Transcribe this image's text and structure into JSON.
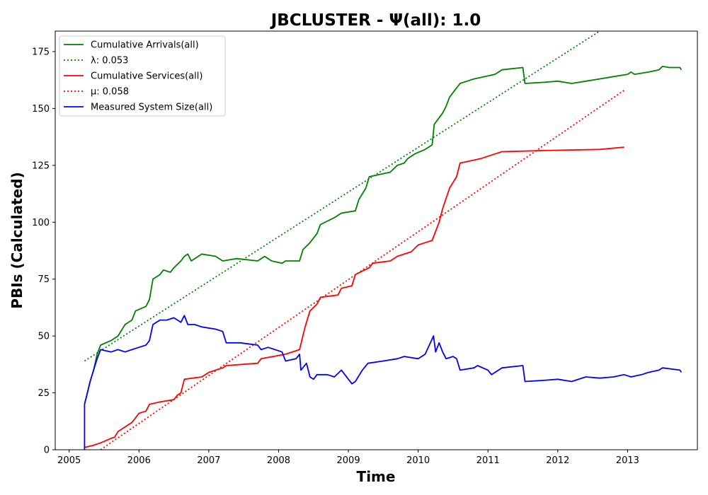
{
  "chart_data": {
    "type": "line",
    "title": "JBCLUSTER -  Ψ(all): 1.0",
    "xlabel": "Time",
    "ylabel": "PBIs (Calculated)",
    "xlim": [
      2004.8,
      2014.0
    ],
    "ylim": [
      0,
      184
    ],
    "x_ticks": [
      2005,
      2006,
      2007,
      2008,
      2009,
      2010,
      2011,
      2012,
      2013
    ],
    "x_tick_labels": [
      "2005",
      "2006",
      "2007",
      "2008",
      "2009",
      "2010",
      "2011",
      "2012",
      "2013"
    ],
    "y_ticks": [
      0,
      25,
      50,
      75,
      100,
      125,
      150,
      175
    ],
    "y_tick_labels": [
      "0",
      "25",
      "50",
      "75",
      "100",
      "125",
      "150",
      "175"
    ],
    "grid": false,
    "legend_position": "top-left",
    "series": [
      {
        "name": "Cumulative Arrivals(all)",
        "color": "#008000",
        "style": "solid",
        "points": [
          [
            2005.22,
            20
          ],
          [
            2005.26,
            25
          ],
          [
            2005.3,
            30
          ],
          [
            2005.35,
            35
          ],
          [
            2005.4,
            42
          ],
          [
            2005.45,
            46
          ],
          [
            2005.6,
            48
          ],
          [
            2005.7,
            50
          ],
          [
            2005.8,
            55
          ],
          [
            2005.9,
            57
          ],
          [
            2005.95,
            61
          ],
          [
            2006.1,
            63
          ],
          [
            2006.15,
            66
          ],
          [
            2006.2,
            75
          ],
          [
            2006.3,
            77
          ],
          [
            2006.35,
            79
          ],
          [
            2006.45,
            78
          ],
          [
            2006.5,
            80
          ],
          [
            2006.6,
            83
          ],
          [
            2006.65,
            85
          ],
          [
            2006.7,
            86
          ],
          [
            2006.75,
            83
          ],
          [
            2006.9,
            86
          ],
          [
            2007.1,
            85
          ],
          [
            2007.2,
            83
          ],
          [
            2007.4,
            84
          ],
          [
            2007.7,
            83
          ],
          [
            2007.8,
            85
          ],
          [
            2007.9,
            83
          ],
          [
            2008.05,
            82
          ],
          [
            2008.1,
            83
          ],
          [
            2008.3,
            83
          ],
          [
            2008.35,
            88
          ],
          [
            2008.45,
            91
          ],
          [
            2008.55,
            95
          ],
          [
            2008.6,
            99
          ],
          [
            2008.8,
            102
          ],
          [
            2008.9,
            104
          ],
          [
            2009.1,
            105
          ],
          [
            2009.15,
            110
          ],
          [
            2009.25,
            115
          ],
          [
            2009.3,
            120
          ],
          [
            2009.6,
            122
          ],
          [
            2009.7,
            125
          ],
          [
            2009.8,
            126
          ],
          [
            2009.85,
            128
          ],
          [
            2009.95,
            130
          ],
          [
            2010.1,
            132
          ],
          [
            2010.2,
            134
          ],
          [
            2010.23,
            143
          ],
          [
            2010.35,
            148
          ],
          [
            2010.4,
            151
          ],
          [
            2010.45,
            155
          ],
          [
            2010.5,
            157
          ],
          [
            2010.6,
            161
          ],
          [
            2010.7,
            162
          ],
          [
            2010.8,
            163
          ],
          [
            2011.1,
            165
          ],
          [
            2011.2,
            167
          ],
          [
            2011.5,
            168
          ],
          [
            2011.53,
            161
          ],
          [
            2011.8,
            161.5
          ],
          [
            2012.0,
            162
          ],
          [
            2012.2,
            161
          ],
          [
            2012.4,
            162
          ],
          [
            2012.6,
            163
          ],
          [
            2012.8,
            164
          ],
          [
            2013.0,
            165
          ],
          [
            2013.05,
            166
          ],
          [
            2013.1,
            165
          ],
          [
            2013.3,
            166
          ],
          [
            2013.45,
            167
          ],
          [
            2013.5,
            168.5
          ],
          [
            2013.6,
            168
          ],
          [
            2013.75,
            168
          ],
          [
            2013.77,
            167
          ]
        ]
      },
      {
        "name": "λ: 0.053",
        "color": "#008000",
        "style": "dotted",
        "points": [
          [
            2005.22,
            39
          ],
          [
            2012.6,
            184
          ]
        ]
      },
      {
        "name": "Cumulative Services(all)",
        "color": "#ff0000",
        "style": "solid",
        "points": [
          [
            2005.22,
            1
          ],
          [
            2005.35,
            2
          ],
          [
            2005.45,
            3
          ],
          [
            2005.6,
            5
          ],
          [
            2005.65,
            5.5
          ],
          [
            2005.7,
            8
          ],
          [
            2005.8,
            10
          ],
          [
            2005.9,
            12
          ],
          [
            2006.0,
            16
          ],
          [
            2006.1,
            17
          ],
          [
            2006.15,
            20
          ],
          [
            2006.3,
            21
          ],
          [
            2006.5,
            22
          ],
          [
            2006.55,
            24
          ],
          [
            2006.6,
            25
          ],
          [
            2006.65,
            31
          ],
          [
            2006.9,
            32
          ],
          [
            2007.0,
            34
          ],
          [
            2007.2,
            36
          ],
          [
            2007.25,
            37
          ],
          [
            2007.7,
            38
          ],
          [
            2007.75,
            40
          ],
          [
            2008.1,
            42
          ],
          [
            2008.3,
            44
          ],
          [
            2008.38,
            54
          ],
          [
            2008.45,
            61
          ],
          [
            2008.55,
            64
          ],
          [
            2008.6,
            67
          ],
          [
            2008.85,
            68
          ],
          [
            2008.9,
            71
          ],
          [
            2009.05,
            72
          ],
          [
            2009.1,
            77
          ],
          [
            2009.3,
            80
          ],
          [
            2009.35,
            82
          ],
          [
            2009.6,
            83
          ],
          [
            2009.7,
            85
          ],
          [
            2009.9,
            87
          ],
          [
            2010.0,
            90
          ],
          [
            2010.1,
            91
          ],
          [
            2010.2,
            92
          ],
          [
            2010.3,
            100
          ],
          [
            2010.35,
            106
          ],
          [
            2010.45,
            115
          ],
          [
            2010.55,
            120
          ],
          [
            2010.6,
            126
          ],
          [
            2010.9,
            128
          ],
          [
            2011.1,
            130
          ],
          [
            2011.2,
            131
          ],
          [
            2011.8,
            131.5
          ],
          [
            2012.6,
            132
          ],
          [
            2012.95,
            133
          ]
        ]
      },
      {
        "name": "μ: 0.058",
        "color": "#ff0000",
        "style": "dotted",
        "points": [
          [
            2005.45,
            0
          ],
          [
            2012.95,
            158
          ]
        ]
      },
      {
        "name": "Measured System Size(all)",
        "color": "#0000ff",
        "style": "solid",
        "points": [
          [
            2005.22,
            0
          ],
          [
            2005.22,
            20
          ],
          [
            2005.26,
            25
          ],
          [
            2005.3,
            30
          ],
          [
            2005.35,
            35
          ],
          [
            2005.4,
            40
          ],
          [
            2005.45,
            44
          ],
          [
            2005.6,
            43
          ],
          [
            2005.7,
            44
          ],
          [
            2005.8,
            43
          ],
          [
            2005.9,
            44
          ],
          [
            2006.0,
            45
          ],
          [
            2006.1,
            46
          ],
          [
            2006.15,
            48
          ],
          [
            2006.2,
            55
          ],
          [
            2006.3,
            57
          ],
          [
            2006.4,
            57
          ],
          [
            2006.5,
            58
          ],
          [
            2006.6,
            56
          ],
          [
            2006.65,
            59
          ],
          [
            2006.7,
            55
          ],
          [
            2006.8,
            55
          ],
          [
            2006.9,
            54
          ],
          [
            2007.1,
            53
          ],
          [
            2007.2,
            52
          ],
          [
            2007.25,
            47
          ],
          [
            2007.45,
            47
          ],
          [
            2007.7,
            46
          ],
          [
            2007.75,
            44
          ],
          [
            2007.85,
            45
          ],
          [
            2008.05,
            43
          ],
          [
            2008.1,
            39
          ],
          [
            2008.25,
            40
          ],
          [
            2008.3,
            42
          ],
          [
            2008.32,
            35
          ],
          [
            2008.4,
            38
          ],
          [
            2008.45,
            32
          ],
          [
            2008.5,
            31
          ],
          [
            2008.55,
            33
          ],
          [
            2008.7,
            33
          ],
          [
            2008.8,
            32
          ],
          [
            2008.9,
            35
          ],
          [
            2009.05,
            29
          ],
          [
            2009.1,
            30
          ],
          [
            2009.2,
            35
          ],
          [
            2009.28,
            38
          ],
          [
            2009.5,
            39
          ],
          [
            2009.7,
            40
          ],
          [
            2009.8,
            41
          ],
          [
            2010.0,
            40
          ],
          [
            2010.1,
            42
          ],
          [
            2010.22,
            50
          ],
          [
            2010.25,
            43
          ],
          [
            2010.3,
            47
          ],
          [
            2010.35,
            43
          ],
          [
            2010.4,
            40
          ],
          [
            2010.5,
            41
          ],
          [
            2010.55,
            40
          ],
          [
            2010.6,
            35
          ],
          [
            2010.8,
            36
          ],
          [
            2010.85,
            37
          ],
          [
            2011.0,
            35
          ],
          [
            2011.05,
            33
          ],
          [
            2011.1,
            34
          ],
          [
            2011.2,
            36
          ],
          [
            2011.5,
            37
          ],
          [
            2011.53,
            30
          ],
          [
            2011.8,
            30.5
          ],
          [
            2012.0,
            31
          ],
          [
            2012.2,
            30
          ],
          [
            2012.4,
            32
          ],
          [
            2012.6,
            31.5
          ],
          [
            2012.8,
            32
          ],
          [
            2012.95,
            33
          ],
          [
            2013.05,
            32
          ],
          [
            2013.2,
            33
          ],
          [
            2013.3,
            34
          ],
          [
            2013.45,
            35
          ],
          [
            2013.5,
            36
          ],
          [
            2013.75,
            35
          ],
          [
            2013.77,
            34
          ]
        ]
      }
    ]
  }
}
